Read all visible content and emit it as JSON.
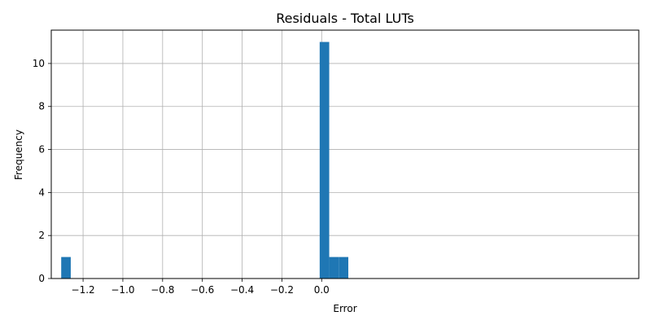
{
  "chart_data": {
    "type": "bar",
    "title": "Residuals - Total LUTs",
    "xlabel": "Error",
    "ylabel": "Frequency",
    "xlim": [
      -1.36,
      1.595
    ],
    "ylim": [
      0,
      11.55
    ],
    "x_ticks": [
      -1.2,
      -1.0,
      -0.8,
      -0.6,
      -0.4,
      -0.2,
      0.0
    ],
    "x_tick_labels": [
      "−1.2",
      "−1.0",
      "−0.8",
      "−0.6",
      "−0.4",
      "−0.2",
      "0.0"
    ],
    "y_ticks": [
      0,
      2,
      4,
      6,
      8,
      10
    ],
    "y_tick_labels": [
      "0",
      "2",
      "4",
      "6",
      "8",
      "10"
    ],
    "grid": true,
    "bar_color": "#1f77b4",
    "bins": [
      {
        "x0": -1.31,
        "x1": -1.262,
        "value": 1
      },
      {
        "x0": -0.01,
        "x1": 0.038,
        "value": 11
      },
      {
        "x0": 0.038,
        "x1": 0.086,
        "value": 1
      },
      {
        "x0": 0.086,
        "x1": 0.134,
        "value": 1
      }
    ]
  }
}
